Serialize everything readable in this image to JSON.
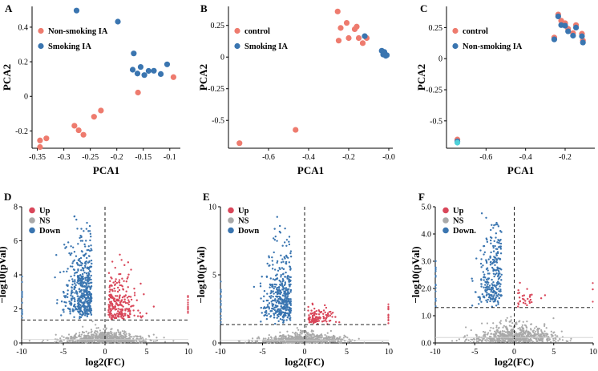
{
  "colors": {
    "salmon": "#ee7b6e",
    "blue": "#3a75b0",
    "red": "#d9475a",
    "gray": "#a9a9a9",
    "cyan": "#4fd1d9"
  },
  "chart_data": [
    {
      "panel": "A",
      "type": "scatter",
      "xlabel": "PCA1",
      "ylabel": "PCA2",
      "xlim": [
        -0.36,
        -0.08
      ],
      "ylim": [
        -0.3,
        0.52
      ],
      "xticks": [
        -0.35,
        -0.3,
        -0.25,
        -0.2,
        -0.15,
        -0.1
      ],
      "yticks": [
        -0.2,
        0,
        0.2,
        0.4
      ],
      "legend_position": "top-left",
      "series": [
        {
          "name": "Non-smoking IA",
          "color": "#ee7b6e",
          "x": [
            -0.345,
            -0.345,
            -0.333,
            -0.28,
            -0.272,
            -0.263,
            -0.243,
            -0.23,
            -0.16,
            -0.093
          ],
          "y": [
            -0.293,
            -0.255,
            -0.243,
            -0.17,
            -0.196,
            -0.222,
            -0.118,
            -0.082,
            0.022,
            0.111
          ]
        },
        {
          "name": "Smoking IA",
          "color": "#3a75b0",
          "x": [
            -0.276,
            -0.198,
            -0.168,
            -0.17,
            -0.161,
            -0.155,
            -0.148,
            -0.14,
            -0.13,
            -0.117,
            -0.105
          ],
          "y": [
            0.496,
            0.432,
            0.248,
            0.154,
            0.132,
            0.17,
            0.123,
            0.147,
            0.148,
            0.129,
            0.185
          ]
        }
      ]
    },
    {
      "panel": "B",
      "type": "scatter",
      "xlabel": "PCA1",
      "ylabel": "PCA2",
      "xlim": [
        -0.8,
        0.02
      ],
      "ylim": [
        -0.72,
        0.4
      ],
      "xticks": [
        -0.6,
        -0.4,
        -0.2,
        -0.0
      ],
      "yticks": [
        -0.5,
        -0.25,
        0.0,
        0.25
      ],
      "legend_position": "top-left",
      "series": [
        {
          "name": "control",
          "color": "#ee7b6e",
          "x": [
            -0.745,
            -0.465,
            -0.255,
            -0.25,
            -0.24,
            -0.21,
            -0.2,
            -0.17,
            -0.16,
            -0.15,
            -0.13,
            -0.11
          ],
          "y": [
            -0.68,
            -0.575,
            0.36,
            0.13,
            0.23,
            0.27,
            0.15,
            0.22,
            0.24,
            0.15,
            0.11,
            0.15
          ]
        },
        {
          "name": "Smoking IA",
          "color": "#3a75b0",
          "x": [
            -0.12,
            -0.035,
            -0.028,
            -0.022,
            -0.015,
            -0.01
          ],
          "y": [
            0.165,
            0.05,
            0.02,
            0.04,
            0.01,
            0.015
          ]
        }
      ]
    },
    {
      "panel": "C",
      "type": "scatter",
      "xlabel": "PCA1",
      "ylabel": "PCA2",
      "xlim": [
        -0.8,
        -0.05
      ],
      "ylim": [
        -0.72,
        0.42
      ],
      "xticks": [
        -0.6,
        -0.4,
        -0.2
      ],
      "yticks": [
        -0.5,
        -0.25,
        0.0,
        0.25
      ],
      "legend_position": "top-left",
      "series": [
        {
          "name": "control",
          "color": "#ee7b6e",
          "x": [
            -0.745,
            -0.255,
            -0.235,
            -0.22,
            -0.2,
            -0.185,
            -0.16,
            -0.145,
            -0.115,
            -0.11
          ],
          "y": [
            -0.65,
            0.17,
            0.355,
            0.305,
            0.285,
            0.24,
            0.205,
            0.27,
            0.2,
            0.145
          ]
        },
        {
          "name": "Non-smoking IA",
          "color": "#3a75b0",
          "x": [
            -0.745,
            -0.255,
            -0.235,
            -0.22,
            -0.2,
            -0.185,
            -0.16,
            -0.145,
            -0.115,
            -0.11
          ],
          "y": [
            -0.665,
            0.155,
            0.34,
            0.27,
            0.265,
            0.22,
            0.185,
            0.25,
            0.18,
            0.13
          ]
        },
        {
          "name": "",
          "color": "#4fd1d9",
          "x": [
            -0.745
          ],
          "y": [
            -0.675
          ]
        }
      ]
    },
    {
      "panel": "D",
      "type": "scatter",
      "subtype": "volcano",
      "xlabel": "log2(FC)",
      "ylabel": "−log10(pVal)",
      "xlim": [
        -10,
        10
      ],
      "ylim": [
        0,
        8
      ],
      "xticks": [
        -10,
        -5,
        0,
        5,
        10
      ],
      "yticks": [
        0,
        2,
        4,
        6,
        8
      ],
      "threshold_y": 1.35,
      "threshold_x": 0,
      "legend": [
        "Up",
        "NS",
        "Down"
      ],
      "legend_position": "top-left"
    },
    {
      "panel": "E",
      "type": "scatter",
      "subtype": "volcano",
      "xlabel": "log2(FC)",
      "ylabel": "−log10(pVal)",
      "xlim": [
        -10,
        10
      ],
      "ylim": [
        0,
        10
      ],
      "xticks": [
        -10,
        -5,
        0,
        5,
        10
      ],
      "yticks": [
        0,
        5,
        10
      ],
      "threshold_y": 1.35,
      "threshold_x": 0,
      "legend": [
        "Up",
        "NS",
        "Down"
      ],
      "legend_position": "top-left"
    },
    {
      "panel": "F",
      "type": "scatter",
      "subtype": "volcano",
      "xlabel": "log2(FC)",
      "ylabel": "−log10(pVal)",
      "xlim": [
        -10,
        10
      ],
      "ylim": [
        0,
        5
      ],
      "xticks": [
        -10,
        -5,
        0,
        5,
        10
      ],
      "yticks": [
        0.0,
        1.0,
        2.0,
        3.0,
        4.0,
        5.0
      ],
      "tick_labels_y": [
        "0.0",
        "1.0",
        "2.0",
        "3.0",
        "4.0",
        "5.0"
      ],
      "threshold_y": 1.3,
      "threshold_x": 0,
      "legend": [
        "Up",
        "NS",
        "Down."
      ],
      "legend_position": "top-left"
    }
  ]
}
